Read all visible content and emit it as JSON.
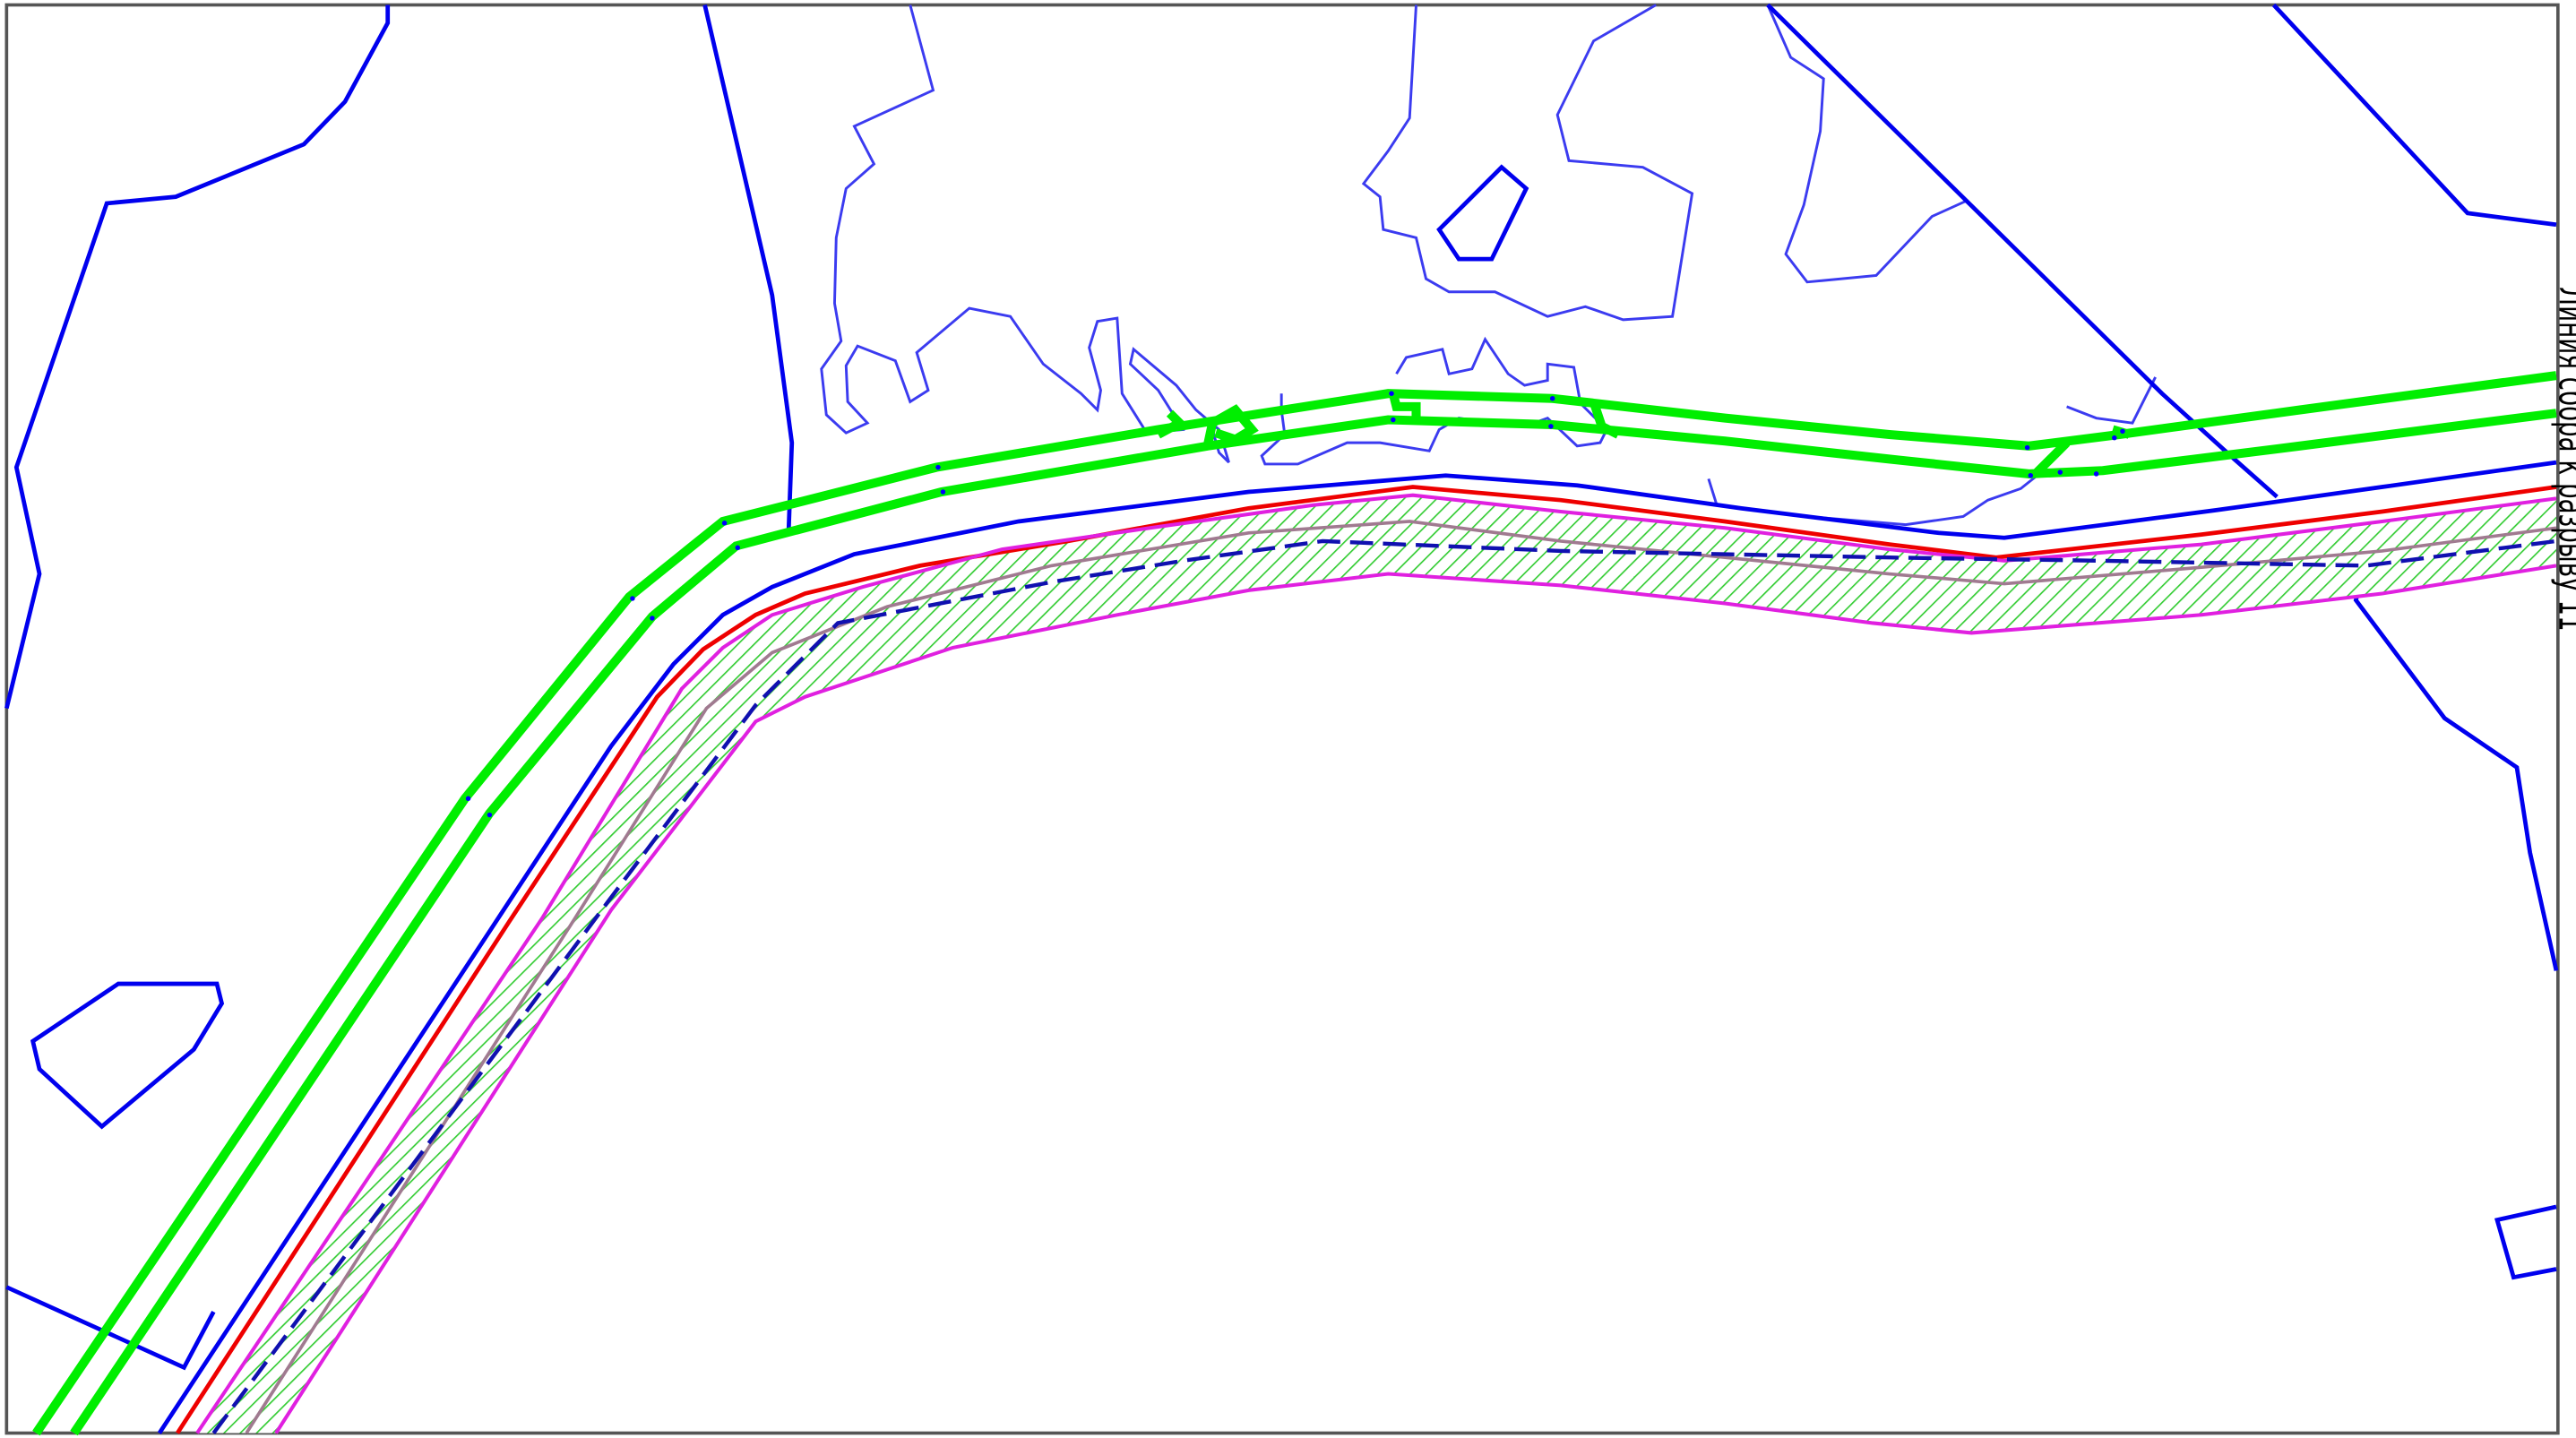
{
  "map": {
    "side_label": "Линия сбора к разрыву 11",
    "colors": {
      "background": "#ffffff",
      "frame": "#555555",
      "contours": "#3b3bf0",
      "boundaries": "#0000ee",
      "corridor": "#00ee00",
      "red_line": "#ee0000",
      "magenta_line": "#e020e0",
      "dashed_line": "#1010b0",
      "hatch": "#33cc33"
    }
  }
}
